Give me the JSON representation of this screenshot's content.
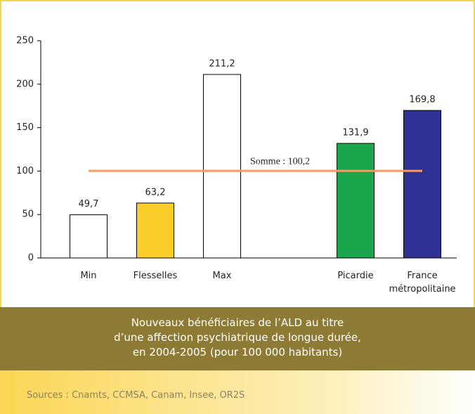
{
  "chart_data": {
    "type": "bar",
    "categories": [
      "Min",
      "Flesselles",
      "Max",
      null,
      "Picardie",
      "France métropolitaine"
    ],
    "values": [
      49.7,
      63.2,
      211.2,
      null,
      131.9,
      169.8
    ],
    "value_labels": [
      "49,7",
      "63,2",
      "211,2",
      null,
      "131,9",
      "169,8"
    ],
    "colors": [
      "#ffffff",
      "#fbcd2b",
      "#ffffff",
      null,
      "#1ba64b",
      "#2e3192"
    ],
    "ylim": [
      0,
      250
    ],
    "yticks": [
      0,
      50,
      100,
      150,
      200,
      250
    ],
    "reference_line": {
      "value": 100.2,
      "label": "Somme : 100,2",
      "color": "#f39a65"
    },
    "caption": [
      "Nouveaux bénéficiaires de l’ALD au titre",
      "d’une affection psychiatrique de longue durée,",
      "en 2004-2005 (pour 100 000 habitants)"
    ],
    "source": "Sources : Cnamts, CCMSA, Canam, Insee, OR2S"
  }
}
